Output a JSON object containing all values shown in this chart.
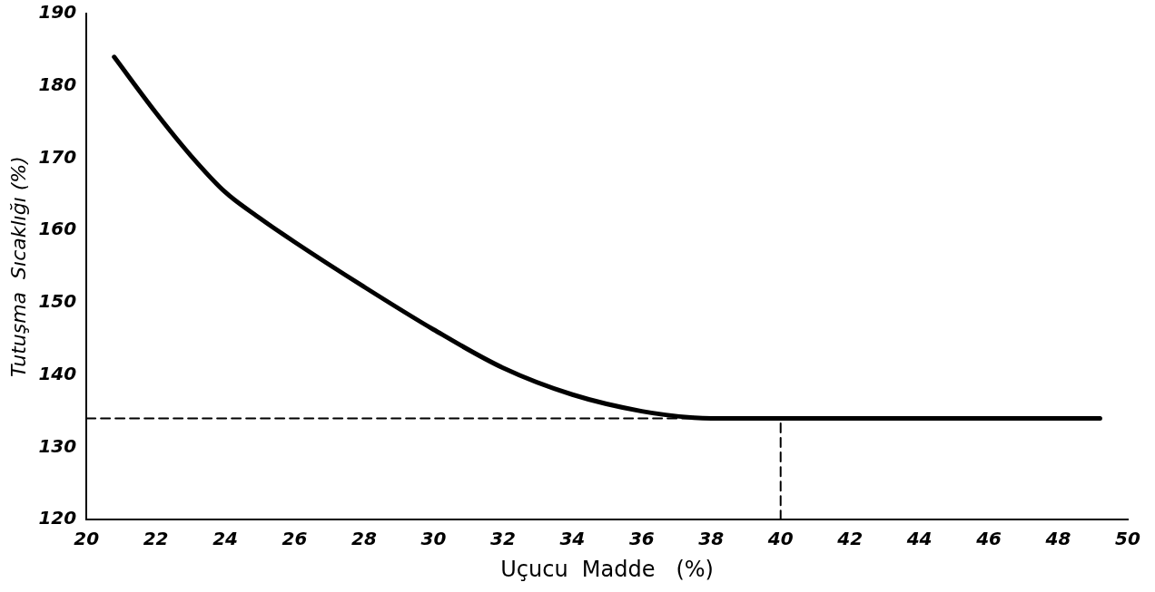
{
  "chart_data": {
    "type": "line",
    "xlabel": "Uçucu  Madde   (%)",
    "ylabel": "Tutuşma  Sıcaklığı (%)",
    "xlim": [
      20,
      50
    ],
    "xticks": [
      20,
      22,
      24,
      26,
      28,
      30,
      32,
      34,
      36,
      38,
      40,
      42,
      44,
      46,
      48,
      50
    ],
    "ylim": [
      120,
      190
    ],
    "yticks": [
      120,
      130,
      140,
      150,
      160,
      170,
      180,
      190
    ],
    "grid": false,
    "legend": false,
    "marker": "none",
    "series": [
      {
        "color": "#000000",
        "line_style": "solid",
        "x": [
          20.8,
          22,
          23,
          24,
          25,
          26,
          28,
          30,
          32,
          34,
          36,
          37.5,
          38,
          40,
          44,
          49.2
        ],
        "values": [
          184,
          176.3,
          170.4,
          165.3,
          161.7,
          158.4,
          152.2,
          146.3,
          141,
          137.3,
          135,
          134.1,
          134,
          134,
          134,
          134
        ]
      },
      {
        "color": "#000000",
        "line_style": "dashed",
        "x": [
          20,
          37.5
        ],
        "values": [
          134,
          134
        ]
      },
      {
        "color": "#000000",
        "line_style": "dashed",
        "x": [
          40,
          40
        ],
        "values": [
          120,
          134
        ]
      }
    ]
  }
}
